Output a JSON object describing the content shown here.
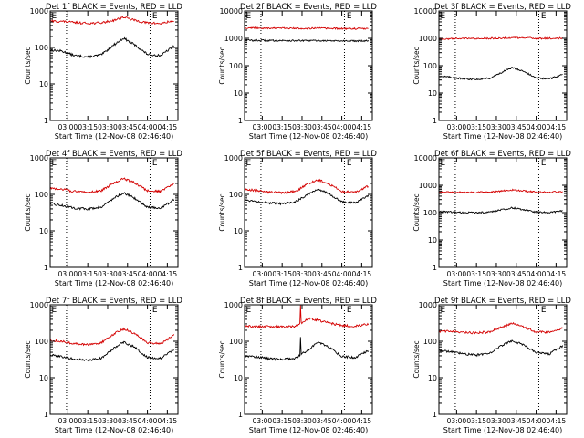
{
  "figure": {
    "colors": {
      "events": "#000000",
      "lld": "#d40000",
      "axis": "#000000"
    },
    "shared": {
      "ylabel": "Counts/sec",
      "xlabel": "Start Time (12-Nov-08 02:46:40)",
      "x_tick_labels": [
        "03:00",
        "03:15",
        "03:30",
        "03:45",
        "04:00",
        "04:15"
      ],
      "y_scale": "log",
      "edge_marker": "E"
    }
  },
  "chart_data": [
    {
      "type": "line",
      "title": "Det 1f BLACK = Events, RED = LLD",
      "ylabel": "Counts/sec",
      "xlabel": "Start Time (12-Nov-08 02:46:40)",
      "x_range": [
        "02:46:40",
        "04:23:00"
      ],
      "x_ticks": [
        "03:00",
        "03:15",
        "03:30",
        "03:45",
        "04:00",
        "04:15"
      ],
      "ylim": [
        1,
        1000
      ],
      "y_ticks": [
        1,
        10,
        100,
        1000
      ],
      "y_scale": "log",
      "vertical_dotted_lines": [
        "02:59",
        "04:02"
      ],
      "edge_markers": [
        "02:47",
        "04:03"
      ],
      "x": [
        "02:47",
        "02:55",
        "03:05",
        "03:15",
        "03:25",
        "03:35",
        "03:42",
        "03:50",
        "04:00",
        "04:10",
        "04:20"
      ],
      "series": [
        {
          "name": "Events",
          "color": "black",
          "values": [
            85,
            80,
            60,
            55,
            62,
            120,
            180,
            120,
            65,
            60,
            110
          ]
        },
        {
          "name": "LLD",
          "color": "red",
          "values": [
            520,
            520,
            480,
            460,
            470,
            560,
            680,
            560,
            470,
            450,
            540
          ]
        }
      ]
    },
    {
      "type": "line",
      "title": "Det 2f BLACK = Events, RED = LLD",
      "ylabel": "Counts/sec",
      "xlabel": "Start Time (12-Nov-08 02:46:40)",
      "x_range": [
        "02:46:40",
        "04:23:00"
      ],
      "x_ticks": [
        "03:00",
        "03:15",
        "03:30",
        "03:45",
        "04:00",
        "04:15"
      ],
      "ylim": [
        1,
        10000
      ],
      "y_ticks": [
        1,
        10,
        100,
        1000,
        10000
      ],
      "y_scale": "log",
      "vertical_dotted_lines": [
        "02:59",
        "04:02"
      ],
      "edge_markers": [
        "02:47",
        "04:03"
      ],
      "x": [
        "02:47",
        "02:55",
        "03:05",
        "03:15",
        "03:25",
        "03:35",
        "03:42",
        "03:50",
        "04:00",
        "04:10",
        "04:20"
      ],
      "series": [
        {
          "name": "Events",
          "color": "black",
          "values": [
            850,
            840,
            830,
            830,
            820,
            820,
            830,
            820,
            810,
            810,
            820
          ]
        },
        {
          "name": "LLD",
          "color": "red",
          "values": [
            2400,
            2400,
            2350,
            2350,
            2300,
            2300,
            2350,
            2300,
            2250,
            2250,
            2300
          ]
        }
      ]
    },
    {
      "type": "line",
      "title": "Det 3f BLACK = Events, RED = LLD",
      "ylabel": "Counts/sec",
      "xlabel": "Start Time (12-Nov-08 02:46:40)",
      "x_range": [
        "02:46:40",
        "04:23:00"
      ],
      "x_ticks": [
        "03:00",
        "03:15",
        "03:30",
        "03:45",
        "04:00",
        "04:15"
      ],
      "ylim": [
        1,
        10000
      ],
      "y_ticks": [
        1,
        10,
        100,
        1000,
        10000
      ],
      "y_scale": "log",
      "vertical_dotted_lines": [
        "02:59",
        "04:02"
      ],
      "edge_markers": [
        "02:47",
        "04:03"
      ],
      "x": [
        "02:47",
        "02:55",
        "03:05",
        "03:15",
        "03:25",
        "03:35",
        "03:42",
        "03:50",
        "04:00",
        "04:10",
        "04:20"
      ],
      "series": [
        {
          "name": "Events",
          "color": "black",
          "values": [
            42,
            38,
            33,
            32,
            35,
            60,
            85,
            65,
            35,
            33,
            48
          ]
        },
        {
          "name": "LLD",
          "color": "red",
          "values": [
            950,
            960,
            980,
            990,
            1000,
            1020,
            1050,
            1030,
            1000,
            990,
            1010
          ]
        }
      ]
    },
    {
      "type": "line",
      "title": "Det 4f BLACK = Events, RED = LLD",
      "ylabel": "Counts/sec",
      "xlabel": "Start Time (12-Nov-08 02:46:40)",
      "x_range": [
        "02:46:40",
        "04:23:00"
      ],
      "x_ticks": [
        "03:00",
        "03:15",
        "03:30",
        "03:45",
        "04:00",
        "04:15"
      ],
      "ylim": [
        1,
        1000
      ],
      "y_ticks": [
        1,
        10,
        100,
        1000
      ],
      "y_scale": "log",
      "vertical_dotted_lines": [
        "02:59",
        "04:02"
      ],
      "edge_markers": [
        "02:47",
        "04:03"
      ],
      "x": [
        "02:47",
        "02:55",
        "03:05",
        "03:15",
        "03:25",
        "03:35",
        "03:42",
        "03:50",
        "04:00",
        "04:10",
        "04:20"
      ],
      "series": [
        {
          "name": "Events",
          "color": "black",
          "values": [
            55,
            50,
            42,
            40,
            45,
            80,
            110,
            80,
            45,
            42,
            70
          ]
        },
        {
          "name": "LLD",
          "color": "red",
          "values": [
            150,
            140,
            120,
            115,
            125,
            210,
            270,
            210,
            125,
            120,
            190
          ]
        }
      ]
    },
    {
      "type": "line",
      "title": "Det 5f BLACK = Events, RED = LLD",
      "ylabel": "Counts/sec",
      "xlabel": "Start Time (12-Nov-08 02:46:40)",
      "x_range": [
        "02:46:40",
        "04:23:00"
      ],
      "x_ticks": [
        "03:00",
        "03:15",
        "03:30",
        "03:45",
        "04:00",
        "04:15"
      ],
      "ylim": [
        1,
        1000
      ],
      "y_ticks": [
        1,
        10,
        100,
        1000
      ],
      "y_scale": "log",
      "vertical_dotted_lines": [
        "02:59",
        "04:02"
      ],
      "edge_markers": [
        "02:47",
        "04:03"
      ],
      "x": [
        "02:47",
        "02:55",
        "03:05",
        "03:15",
        "03:25",
        "03:35",
        "03:42",
        "03:50",
        "04:00",
        "04:10",
        "04:20"
      ],
      "series": [
        {
          "name": "Events",
          "color": "black",
          "values": [
            70,
            65,
            58,
            55,
            62,
            105,
            140,
            105,
            62,
            58,
            90
          ]
        },
        {
          "name": "LLD",
          "color": "red",
          "values": [
            135,
            130,
            115,
            110,
            120,
            200,
            250,
            200,
            120,
            115,
            170
          ]
        }
      ]
    },
    {
      "type": "line",
      "title": "Det 6f BLACK = Events, RED = LLD",
      "ylabel": "Counts/sec",
      "xlabel": "Start Time (12-Nov-08 02:46:40)",
      "x_range": [
        "02:46:40",
        "04:23:00"
      ],
      "x_ticks": [
        "03:00",
        "03:15",
        "03:30",
        "03:45",
        "04:00",
        "04:15"
      ],
      "ylim": [
        1,
        10000
      ],
      "y_ticks": [
        1,
        10,
        100,
        1000,
        10000
      ],
      "y_scale": "log",
      "vertical_dotted_lines": [
        "02:59",
        "04:02"
      ],
      "edge_markers": [
        "02:47",
        "04:03"
      ],
      "x": [
        "02:47",
        "02:55",
        "03:05",
        "03:15",
        "03:25",
        "03:35",
        "03:42",
        "03:50",
        "04:00",
        "04:10",
        "04:20"
      ],
      "series": [
        {
          "name": "Events",
          "color": "black",
          "values": [
            110,
            105,
            100,
            100,
            105,
            130,
            150,
            130,
            105,
            100,
            115
          ]
        },
        {
          "name": "LLD",
          "color": "red",
          "values": [
            560,
            560,
            550,
            550,
            560,
            620,
            680,
            620,
            560,
            550,
            590
          ]
        }
      ]
    },
    {
      "type": "line",
      "title": "Det 7f BLACK = Events, RED = LLD",
      "ylabel": "Counts/sec",
      "xlabel": "Start Time (12-Nov-08 02:46:40)",
      "x_range": [
        "02:46:40",
        "04:23:00"
      ],
      "x_ticks": [
        "03:00",
        "03:15",
        "03:30",
        "03:45",
        "04:00",
        "04:15"
      ],
      "ylim": [
        1,
        1000
      ],
      "y_ticks": [
        1,
        10,
        100,
        1000
      ],
      "y_scale": "log",
      "vertical_dotted_lines": [
        "02:59",
        "04:02"
      ],
      "edge_markers": [
        "02:47",
        "04:03"
      ],
      "x": [
        "02:47",
        "02:55",
        "03:05",
        "03:15",
        "03:25",
        "03:35",
        "03:42",
        "03:50",
        "04:00",
        "04:10",
        "04:20"
      ],
      "series": [
        {
          "name": "Events",
          "color": "black",
          "values": [
            42,
            38,
            32,
            30,
            34,
            65,
            95,
            70,
            36,
            34,
            60
          ]
        },
        {
          "name": "LLD",
          "color": "red",
          "values": [
            105,
            100,
            85,
            80,
            90,
            160,
            220,
            165,
            90,
            85,
            150
          ]
        }
      ]
    },
    {
      "type": "line",
      "title": "Det 8f BLACK = Events, RED = LLD",
      "ylabel": "Counts/sec",
      "xlabel": "Start Time (12-Nov-08 02:46:40)",
      "x_range": [
        "02:46:40",
        "04:23:00"
      ],
      "x_ticks": [
        "03:00",
        "03:15",
        "03:30",
        "03:45",
        "04:00",
        "04:15"
      ],
      "ylim": [
        1,
        1000
      ],
      "y_ticks": [
        1,
        10,
        100,
        1000
      ],
      "y_scale": "log",
      "vertical_dotted_lines": [
        "02:59",
        "04:02"
      ],
      "edge_markers": [
        "02:47",
        "04:03"
      ],
      "spike": {
        "x": "03:29",
        "events_peak": 130,
        "lld_peak": 1500
      },
      "x": [
        "02:47",
        "02:55",
        "03:05",
        "03:15",
        "03:25",
        "03:35",
        "03:42",
        "03:50",
        "04:00",
        "04:10",
        "04:20"
      ],
      "series": [
        {
          "name": "Events",
          "color": "black",
          "values": [
            40,
            38,
            33,
            32,
            34,
            60,
            95,
            70,
            38,
            36,
            55
          ]
        },
        {
          "name": "LLD",
          "color": "red",
          "values": [
            260,
            255,
            250,
            250,
            255,
            420,
            380,
            320,
            270,
            260,
            300
          ]
        }
      ]
    },
    {
      "type": "line",
      "title": "Det 9f BLACK = Events, RED = LLD",
      "ylabel": "Counts/sec",
      "xlabel": "Start Time (12-Nov-08 02:46:40)",
      "x_range": [
        "02:46:40",
        "04:23:00"
      ],
      "x_ticks": [
        "03:00",
        "03:15",
        "03:30",
        "03:45",
        "04:00",
        "04:15"
      ],
      "ylim": [
        1,
        1000
      ],
      "y_ticks": [
        1,
        10,
        100,
        1000
      ],
      "y_scale": "log",
      "vertical_dotted_lines": [
        "02:59",
        "04:02"
      ],
      "edge_markers": [
        "02:47",
        "04:03"
      ],
      "x": [
        "02:47",
        "02:55",
        "03:05",
        "03:15",
        "03:25",
        "03:35",
        "03:42",
        "03:50",
        "04:00",
        "04:10",
        "04:20"
      ],
      "series": [
        {
          "name": "Events",
          "color": "black",
          "values": [
            55,
            52,
            45,
            42,
            48,
            80,
            105,
            80,
            48,
            45,
            75
          ]
        },
        {
          "name": "LLD",
          "color": "red",
          "values": [
            190,
            185,
            175,
            170,
            180,
            250,
            310,
            250,
            180,
            175,
            230
          ]
        }
      ]
    }
  ]
}
